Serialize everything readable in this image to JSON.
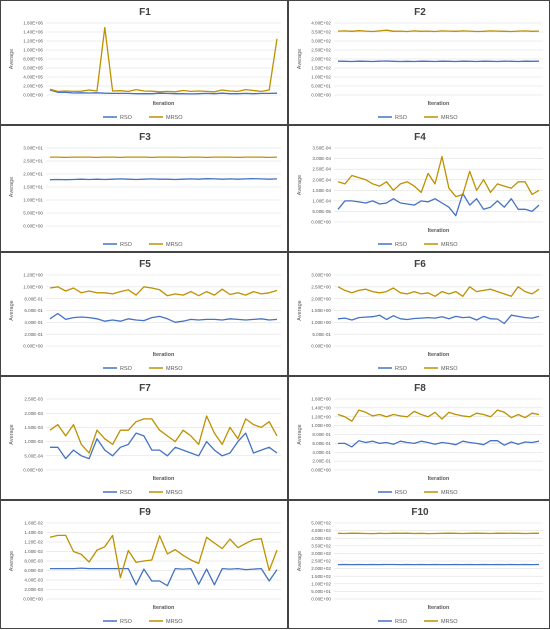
{
  "chart_data": [
    {
      "type": "line",
      "title": "F1",
      "xlabel": "Iteration",
      "ylabel": "Average",
      "yticks": [
        "0.00E+00",
        "2.00E+05",
        "4.00E+05",
        "6.00E+05",
        "8.00E+05",
        "1.00E+06",
        "1.20E+06",
        "1.40E+06",
        "1.60E+06"
      ],
      "ylim": [
        0,
        1600000
      ],
      "legend": "bottom",
      "series": [
        {
          "name": "RSO",
          "color": "#4472C4",
          "values": [
            110000,
            60000,
            60000,
            45000,
            50000,
            45000,
            50000,
            40000,
            35000,
            35000,
            35000,
            30000,
            30000,
            30000,
            40000,
            35000,
            30000,
            30000,
            25000,
            30000,
            35000,
            30000,
            40000,
            30000,
            30000,
            35000,
            30000,
            35000,
            35000,
            40000
          ]
        },
        {
          "name": "MRSO",
          "color": "#BF9000",
          "values": [
            130000,
            80000,
            90000,
            80000,
            85000,
            110000,
            90000,
            1500000,
            90000,
            95000,
            80000,
            120000,
            90000,
            85000,
            70000,
            80000,
            70000,
            100000,
            80000,
            90000,
            80000,
            70000,
            110000,
            90000,
            80000,
            120000,
            100000,
            80000,
            110000,
            1250000
          ]
        }
      ]
    },
    {
      "type": "line",
      "title": "F2",
      "xlabel": "Iteration",
      "ylabel": "Average",
      "yticks": [
        "0.00E+00",
        "5.00E+01",
        "1.00E+02",
        "1.50E+02",
        "2.00E+02",
        "2.50E+02",
        "3.00E+02",
        "3.50E+02",
        "4.00E+02"
      ],
      "ylim": [
        0,
        400
      ],
      "legend": "bottom",
      "series": [
        {
          "name": "RSO",
          "color": "#4472C4",
          "values": [
            188,
            187,
            186,
            188,
            187,
            186,
            188,
            189,
            187,
            186,
            187,
            186,
            188,
            187,
            186,
            188,
            187,
            186,
            188,
            187,
            186,
            188,
            187,
            186,
            188,
            187,
            186,
            188,
            187,
            188
          ]
        },
        {
          "name": "MRSO",
          "color": "#BF9000",
          "values": [
            355,
            356,
            354,
            357,
            355,
            353,
            356,
            360,
            354,
            355,
            353,
            356,
            354,
            355,
            353,
            356,
            355,
            354,
            356,
            355,
            353,
            354,
            356,
            355,
            354,
            353,
            355,
            356,
            354,
            355
          ]
        }
      ]
    },
    {
      "type": "line",
      "title": "F3",
      "xlabel": "",
      "ylabel": "Average",
      "yticks": [
        "0.00E+00",
        "5.00E+00",
        "1.00E+01",
        "1.50E+01",
        "2.00E+01",
        "2.50E+01",
        "3.00E+01"
      ],
      "ylim": [
        0,
        30
      ],
      "legend": "bottom",
      "series": [
        {
          "name": "RSO",
          "color": "#4472C4",
          "values": [
            17.8,
            17.9,
            17.8,
            17.9,
            18.0,
            17.9,
            18.0,
            17.9,
            18.0,
            18.1,
            18.0,
            17.9,
            18.0,
            18.1,
            18.0,
            18.0,
            17.9,
            18.0,
            18.1,
            18.0,
            18.2,
            18.1,
            18.0,
            18.1,
            18.0,
            18.1,
            18.2,
            18.1,
            18.0,
            18.1
          ]
        },
        {
          "name": "MRSO",
          "color": "#BF9000",
          "values": [
            26.5,
            26.5,
            26.4,
            26.5,
            26.5,
            26.5,
            26.4,
            26.5,
            26.5,
            26.4,
            26.5,
            26.5,
            26.5,
            26.4,
            26.5,
            26.5,
            26.5,
            26.4,
            26.5,
            26.5,
            26.4,
            26.5,
            26.5,
            26.5,
            26.4,
            26.5,
            26.5,
            26.5,
            26.4,
            26.5
          ]
        }
      ]
    },
    {
      "type": "line",
      "title": "F4",
      "xlabel": "Iteration",
      "ylabel": "Average",
      "yticks": [
        "0.00E+00",
        "5.00E-05",
        "1.00E-04",
        "1.50E-04",
        "2.00E-04",
        "2.50E-04",
        "3.00E-04",
        "3.50E-04"
      ],
      "ylim": [
        0,
        0.00035
      ],
      "legend": "bottom",
      "series": [
        {
          "name": "RSO",
          "color": "#4472C4",
          "values": [
            6e-05,
            0.0001,
            0.0001,
            9.5e-05,
            9e-05,
            0.0001,
            8.5e-05,
            9e-05,
            0.00011,
            9e-05,
            8.5e-05,
            8e-05,
            0.0001,
            9.5e-05,
            0.00011,
            9e-05,
            7e-05,
            3e-05,
            0.000135,
            8e-05,
            0.00011,
            6e-05,
            7e-05,
            0.0001,
            7e-05,
            0.00011,
            6e-05,
            6e-05,
            5e-05,
            8e-05
          ]
        },
        {
          "name": "MRSO",
          "color": "#BF9000",
          "values": [
            0.00019,
            0.00018,
            0.00022,
            0.00021,
            0.0002,
            0.00018,
            0.00017,
            0.00019,
            0.00015,
            0.00018,
            0.00019,
            0.00017,
            0.00014,
            0.00023,
            0.00018,
            0.00031,
            0.00016,
            0.00012,
            0.00013,
            0.00024,
            0.00015,
            0.0002,
            0.00014,
            0.00018,
            0.00017,
            0.00016,
            0.00019,
            0.00019,
            0.00013,
            0.00015
          ]
        }
      ]
    },
    {
      "type": "line",
      "title": "F5",
      "xlabel": "Iteration",
      "ylabel": "Average",
      "yticks": [
        "0.00E+00",
        "2.00E-01",
        "4.00E-01",
        "6.00E-01",
        "8.00E-01",
        "1.00E+00",
        "1.20E+00"
      ],
      "ylim": [
        0,
        1.2
      ],
      "legend": "bottom",
      "series": [
        {
          "name": "RSO",
          "color": "#4472C4",
          "values": [
            0.46,
            0.55,
            0.45,
            0.48,
            0.49,
            0.48,
            0.46,
            0.42,
            0.44,
            0.42,
            0.46,
            0.44,
            0.43,
            0.48,
            0.5,
            0.46,
            0.4,
            0.42,
            0.45,
            0.44,
            0.45,
            0.45,
            0.44,
            0.46,
            0.45,
            0.44,
            0.45,
            0.46,
            0.44,
            0.45
          ]
        },
        {
          "name": "MRSO",
          "color": "#BF9000",
          "values": [
            0.98,
            1.0,
            0.93,
            0.98,
            0.9,
            0.93,
            0.9,
            0.9,
            0.88,
            0.92,
            0.95,
            0.86,
            1.0,
            0.98,
            0.95,
            0.85,
            0.88,
            0.86,
            0.92,
            0.85,
            0.92,
            0.86,
            0.96,
            0.87,
            0.9,
            0.86,
            0.92,
            0.88,
            0.9,
            0.94
          ]
        }
      ]
    },
    {
      "type": "line",
      "title": "F6",
      "xlabel": "Iteration",
      "ylabel": "Average",
      "yticks": [
        "0.00E+00",
        "5.00E-01",
        "1.00E+00",
        "1.50E+00",
        "2.00E+00",
        "2.50E+00",
        "3.00E+00"
      ],
      "ylim": [
        0,
        3.0
      ],
      "legend": "bottom",
      "series": [
        {
          "name": "RSO",
          "color": "#4472C4",
          "values": [
            1.15,
            1.18,
            1.1,
            1.2,
            1.22,
            1.24,
            1.3,
            1.12,
            1.28,
            1.15,
            1.12,
            1.16,
            1.18,
            1.2,
            1.18,
            1.24,
            1.15,
            1.25,
            1.2,
            1.22,
            1.1,
            1.25,
            1.15,
            1.14,
            0.95,
            1.3,
            1.25,
            1.2,
            1.18,
            1.25
          ]
        },
        {
          "name": "MRSO",
          "color": "#BF9000",
          "values": [
            2.5,
            2.35,
            2.25,
            2.35,
            2.4,
            2.3,
            2.25,
            2.3,
            2.45,
            2.25,
            2.2,
            2.3,
            2.2,
            2.25,
            2.1,
            2.3,
            2.2,
            2.3,
            2.1,
            2.5,
            2.3,
            2.35,
            2.4,
            2.3,
            2.2,
            2.1,
            2.5,
            2.3,
            2.2,
            2.4
          ]
        }
      ]
    },
    {
      "type": "line",
      "title": "F7",
      "xlabel": "Iteration",
      "ylabel": "Average",
      "yticks": [
        "0.00E+00",
        "5.00E-04",
        "1.00E-03",
        "1.50E-03",
        "2.00E-03",
        "2.50E-03"
      ],
      "ylim": [
        0,
        0.0025
      ],
      "legend": "bottom",
      "series": [
        {
          "name": "RSO",
          "color": "#4472C4",
          "values": [
            0.0008,
            0.0008,
            0.0004,
            0.0007,
            0.0005,
            0.0004,
            0.0011,
            0.0007,
            0.0005,
            0.0008,
            0.0009,
            0.0013,
            0.0012,
            0.0007,
            0.0007,
            0.0005,
            0.0008,
            0.0007,
            0.0006,
            0.0005,
            0.001,
            0.0007,
            0.0005,
            0.0006,
            0.001,
            0.0013,
            0.0006,
            0.0007,
            0.0008,
            0.0006
          ]
        },
        {
          "name": "MRSO",
          "color": "#BF9000",
          "values": [
            0.0014,
            0.0016,
            0.0012,
            0.0016,
            0.0009,
            0.0006,
            0.0014,
            0.0011,
            0.0009,
            0.0014,
            0.0014,
            0.0017,
            0.0018,
            0.0018,
            0.0014,
            0.0012,
            0.001,
            0.0014,
            0.0012,
            0.0009,
            0.0019,
            0.0013,
            0.0009,
            0.0015,
            0.0011,
            0.0018,
            0.0016,
            0.0015,
            0.0017,
            0.0012
          ]
        }
      ]
    },
    {
      "type": "line",
      "title": "F8",
      "xlabel": "Iteration",
      "ylabel": "Average",
      "yticks": [
        "0.00E+00",
        "2.00E-01",
        "4.00E-01",
        "6.00E-01",
        "8.00E-01",
        "1.00E+00",
        "1.20E+00",
        "1.40E+00",
        "1.60E+00"
      ],
      "ylim": [
        0,
        1.6
      ],
      "legend": "bottom",
      "series": [
        {
          "name": "RSO",
          "color": "#4472C4",
          "values": [
            0.6,
            0.6,
            0.52,
            0.66,
            0.62,
            0.65,
            0.6,
            0.62,
            0.58,
            0.65,
            0.62,
            0.6,
            0.65,
            0.62,
            0.58,
            0.62,
            0.6,
            0.57,
            0.65,
            0.62,
            0.6,
            0.57,
            0.66,
            0.66,
            0.56,
            0.63,
            0.58,
            0.63,
            0.62,
            0.65
          ]
        },
        {
          "name": "MRSO",
          "color": "#BF9000",
          "values": [
            1.25,
            1.2,
            1.1,
            1.35,
            1.3,
            1.22,
            1.25,
            1.2,
            1.25,
            1.22,
            1.2,
            1.32,
            1.25,
            1.2,
            1.3,
            1.15,
            1.3,
            1.25,
            1.22,
            1.2,
            1.28,
            1.25,
            1.2,
            1.35,
            1.3,
            1.18,
            1.25,
            1.18,
            1.28,
            1.25
          ]
        }
      ]
    },
    {
      "type": "line",
      "title": "F9",
      "xlabel": "Iteration",
      "ylabel": "Average",
      "yticks": [
        "0.00E+00",
        "2.00E-03",
        "4.00E-03",
        "6.00E-03",
        "8.00E-03",
        "1.00E-02",
        "1.20E-02",
        "1.40E-02",
        "1.60E-02"
      ],
      "ylim": [
        0,
        0.016
      ],
      "legend": "bottom",
      "series": [
        {
          "name": "RSO",
          "color": "#4472C4",
          "values": [
            0.0064,
            0.0064,
            0.0064,
            0.0064,
            0.0065,
            0.0064,
            0.0064,
            0.0064,
            0.0064,
            0.0064,
            0.0064,
            0.003,
            0.0063,
            0.0038,
            0.0038,
            0.0028,
            0.0064,
            0.0063,
            0.0064,
            0.0031,
            0.0063,
            0.003,
            0.0064,
            0.0063,
            0.0064,
            0.0062,
            0.0063,
            0.0064,
            0.0038,
            0.0062
          ]
        },
        {
          "name": "MRSO",
          "color": "#BF9000",
          "values": [
            0.013,
            0.0134,
            0.0134,
            0.01,
            0.0094,
            0.0078,
            0.0103,
            0.011,
            0.0134,
            0.0045,
            0.0102,
            0.0077,
            0.008,
            0.0082,
            0.0133,
            0.0095,
            0.0104,
            0.0092,
            0.0082,
            0.0075,
            0.013,
            0.0118,
            0.0106,
            0.0126,
            0.0108,
            0.0117,
            0.0125,
            0.0127,
            0.006,
            0.0103
          ]
        }
      ]
    },
    {
      "type": "line",
      "title": "F10",
      "xlabel": "Iteration",
      "ylabel": "Average",
      "yticks": [
        "0.00E+00",
        "5.00E+01",
        "1.00E+02",
        "1.50E+02",
        "2.00E+02",
        "2.50E+02",
        "3.00E+02",
        "3.50E+02",
        "4.00E+02",
        "4.50E+02",
        "5.00E+02"
      ],
      "ylim": [
        0,
        500
      ],
      "legend": "bottom",
      "series": [
        {
          "name": "RSO",
          "color": "#4472C4",
          "values": [
            226,
            227,
            226,
            227,
            226,
            227,
            226,
            227,
            227,
            226,
            227,
            226,
            227,
            226,
            227,
            226,
            226,
            227,
            226,
            227,
            226,
            227,
            226,
            227,
            226,
            227,
            226,
            227,
            226,
            227
          ]
        },
        {
          "name": "MRSO",
          "color": "#BF9000",
          "values": [
            432,
            431,
            433,
            432,
            431,
            430,
            432,
            431,
            433,
            432,
            433,
            431,
            432,
            430,
            431,
            432,
            433,
            432,
            431,
            432,
            433,
            432,
            431,
            433,
            432,
            433,
            432,
            431,
            432,
            432
          ]
        }
      ]
    }
  ]
}
